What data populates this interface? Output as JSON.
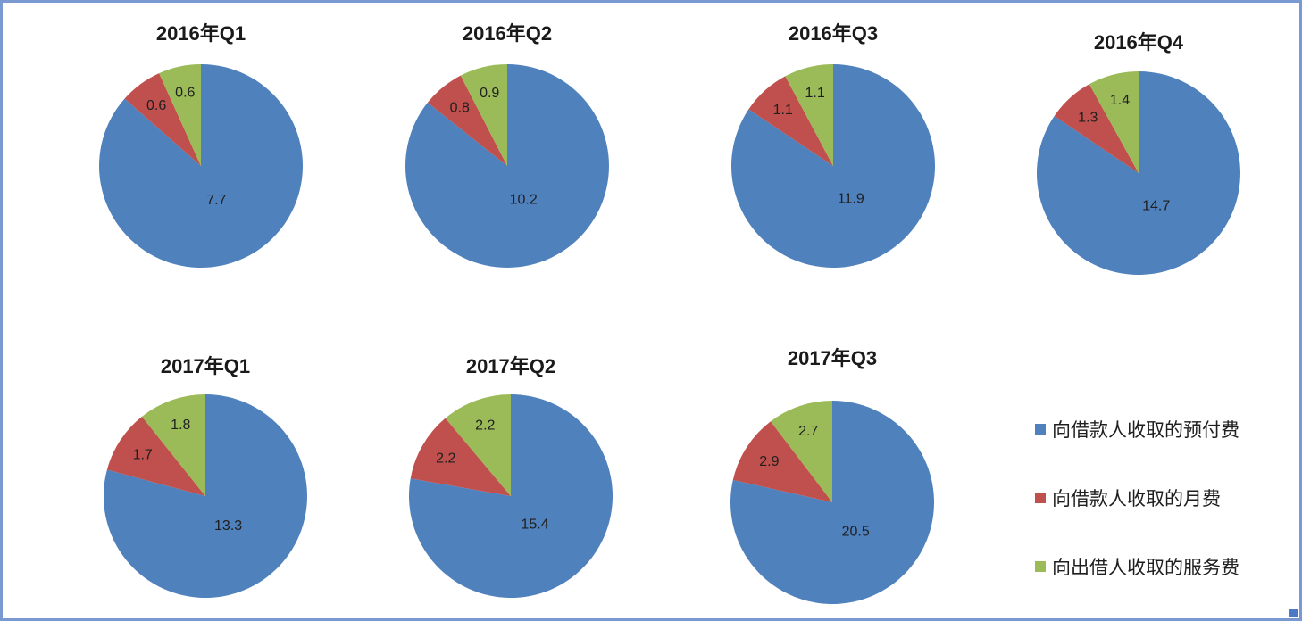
{
  "chart_data": [
    {
      "type": "pie",
      "title": "2016年Q1",
      "labels": [
        "向借款人收取的预付费",
        "向借款人收取的月费",
        "向出借人收取的服务费"
      ],
      "values": [
        7.7,
        0.6,
        0.6
      ],
      "colors": [
        "#4F81BD",
        "#C0504D",
        "#9BBB59"
      ],
      "start_angle": "12-oclock",
      "direction": "clockwise",
      "data_labels": "values"
    },
    {
      "type": "pie",
      "title": "2016年Q2",
      "labels": [
        "向借款人收取的预付费",
        "向借款人收取的月费",
        "向出借人收取的服务费"
      ],
      "values": [
        10.2,
        0.8,
        0.9
      ],
      "colors": [
        "#4F81BD",
        "#C0504D",
        "#9BBB59"
      ],
      "start_angle": "12-oclock",
      "direction": "clockwise",
      "data_labels": "values"
    },
    {
      "type": "pie",
      "title": "2016年Q3",
      "labels": [
        "向借款人收取的预付费",
        "向借款人收取的月费",
        "向出借人收取的服务费"
      ],
      "values": [
        11.9,
        1.1,
        1.1
      ],
      "colors": [
        "#4F81BD",
        "#C0504D",
        "#9BBB59"
      ],
      "start_angle": "12-oclock",
      "direction": "clockwise",
      "data_labels": "values"
    },
    {
      "type": "pie",
      "title": "2016年Q4",
      "labels": [
        "向借款人收取的预付费",
        "向借款人收取的月费",
        "向出借人收取的服务费"
      ],
      "values": [
        14.7,
        1.3,
        1.4
      ],
      "colors": [
        "#4F81BD",
        "#C0504D",
        "#9BBB59"
      ],
      "start_angle": "12-oclock",
      "direction": "clockwise",
      "data_labels": "values"
    },
    {
      "type": "pie",
      "title": "2017年Q1",
      "labels": [
        "向借款人收取的预付费",
        "向借款人收取的月费",
        "向出借人收取的服务费"
      ],
      "values": [
        13.3,
        1.7,
        1.8
      ],
      "colors": [
        "#4F81BD",
        "#C0504D",
        "#9BBB59"
      ],
      "start_angle": "12-oclock",
      "direction": "clockwise",
      "data_labels": "values"
    },
    {
      "type": "pie",
      "title": "2017年Q2",
      "labels": [
        "向借款人收取的预付费",
        "向借款人收取的月费",
        "向出借人收取的服务费"
      ],
      "values": [
        15.4,
        2.2,
        2.2
      ],
      "colors": [
        "#4F81BD",
        "#C0504D",
        "#9BBB59"
      ],
      "start_angle": "12-oclock",
      "direction": "clockwise",
      "data_labels": "values"
    },
    {
      "type": "pie",
      "title": "2017年Q3",
      "labels": [
        "向借款人收取的预付费",
        "向借款人收取的月费",
        "向出借人收取的服务费"
      ],
      "values": [
        20.5,
        2.9,
        2.7
      ],
      "colors": [
        "#4F81BD",
        "#C0504D",
        "#9BBB59"
      ],
      "start_angle": "12-oclock",
      "direction": "clockwise",
      "data_labels": "values"
    }
  ],
  "legend": {
    "position": "right",
    "items": [
      {
        "label": "向借款人收取的预付费",
        "color": "#4F81BD"
      },
      {
        "label": "向借款人收取的月费",
        "color": "#C0504D"
      },
      {
        "label": "向出借人收取的服务费",
        "color": "#9BBB59"
      }
    ]
  },
  "colors": {
    "series_blue": "#4F81BD",
    "series_red": "#C0504D",
    "series_green": "#9BBB59",
    "frame_border": "#7A99D0",
    "resize_handle": "#4E79C7",
    "text": "#1f1f1f"
  }
}
